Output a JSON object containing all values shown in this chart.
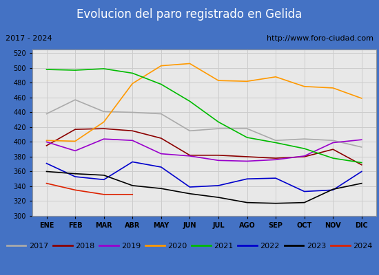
{
  "title": "Evolucion del paro registrado en Gelida",
  "subtitle_left": "2017 - 2024",
  "subtitle_right": "http://www.foro-ciudad.com",
  "months": [
    "ENE",
    "FEB",
    "MAR",
    "ABR",
    "MAY",
    "JUN",
    "JUL",
    "AGO",
    "SEP",
    "OCT",
    "NOV",
    "DIC"
  ],
  "ylim": [
    300,
    525
  ],
  "yticks": [
    300,
    320,
    340,
    360,
    380,
    400,
    420,
    440,
    460,
    480,
    500,
    520
  ],
  "series": {
    "2017": {
      "color": "#aaaaaa",
      "data": [
        438,
        457,
        441,
        440,
        438,
        415,
        418,
        418,
        402,
        404,
        402,
        393
      ]
    },
    "2018": {
      "color": "#8b0000",
      "data": [
        395,
        417,
        418,
        415,
        405,
        382,
        382,
        380,
        378,
        380,
        390,
        369
      ]
    },
    "2019": {
      "color": "#9900cc",
      "data": [
        400,
        388,
        404,
        402,
        384,
        381,
        375,
        374,
        376,
        381,
        399,
        403
      ]
    },
    "2020": {
      "color": "#ff9900",
      "data": [
        402,
        401,
        427,
        479,
        503,
        506,
        483,
        482,
        488,
        475,
        473,
        459
      ]
    },
    "2021": {
      "color": "#00bb00",
      "data": [
        498,
        497,
        499,
        493,
        478,
        455,
        427,
        406,
        399,
        391,
        378,
        372
      ]
    },
    "2022": {
      "color": "#0000cc",
      "data": [
        371,
        353,
        349,
        373,
        366,
        339,
        341,
        350,
        351,
        333,
        335,
        360
      ]
    },
    "2023": {
      "color": "#000000",
      "data": [
        360,
        357,
        355,
        341,
        337,
        330,
        325,
        318,
        317,
        318,
        336,
        344
      ]
    },
    "2024": {
      "color": "#dd2200",
      "data": [
        344,
        335,
        329,
        329,
        null,
        null,
        null,
        null,
        null,
        null,
        null,
        null
      ]
    }
  },
  "bg_color": "#e8e8e8",
  "plot_bg": "#e8e8e8",
  "grid_color": "#cccccc",
  "border_color": "#4472c4",
  "title_fontsize": 12,
  "tick_fontsize": 7,
  "legend_fontsize": 8
}
